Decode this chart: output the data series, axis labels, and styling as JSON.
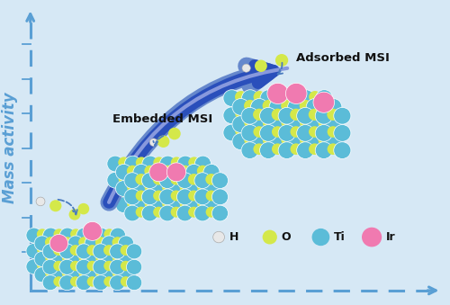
{
  "background_color": "#d6e8f5",
  "axis_color": "#5a9fd4",
  "arrow_color": "#2a50b8",
  "title_mass_activity": "Mass activity",
  "text_embedded": "Embedded MSI",
  "text_adsorbed": "Adsorbed MSI",
  "color_ti": "#5bbcd8",
  "color_o": "#d4e84a",
  "color_ir": "#f07ab0",
  "color_h": "#e8e8e8",
  "figsize": [
    5.0,
    3.39
  ],
  "dpi": 100
}
